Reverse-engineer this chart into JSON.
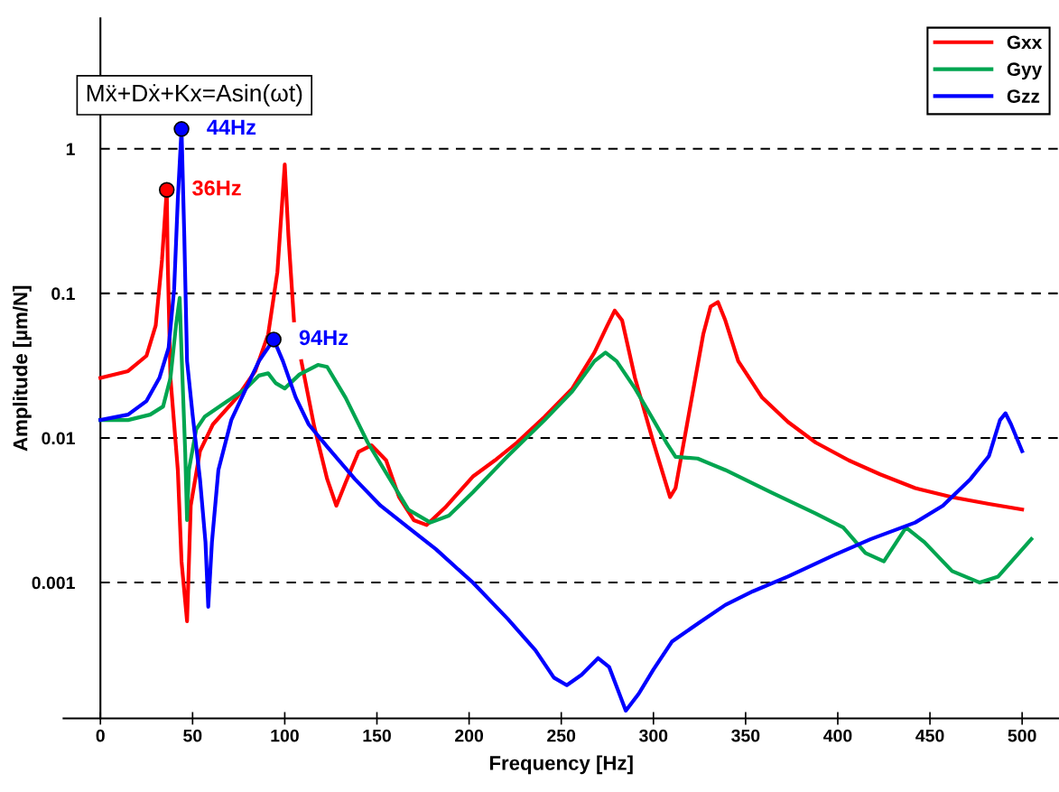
{
  "chart_data": {
    "type": "line",
    "xlabel": "Frequency [Hz]",
    "ylabel": "Amplitude [µm/N]",
    "log": "y",
    "grid": "y",
    "legend": "top right",
    "line_style": "solid",
    "marker": "none",
    "xlim": [
      -20,
      520
    ],
    "xticks": [
      0,
      50,
      100,
      150,
      200,
      250,
      300,
      350,
      400,
      450,
      500
    ],
    "ylim": [
      0.000115,
      8
    ],
    "yticks": [
      0.001,
      0.01,
      0.1,
      1
    ],
    "annotations": [
      "Mẍ+Dẋ+Kx=Asin(ωt)",
      {
        "text": "36Hz",
        "x": 36,
        "y": 0.52
      },
      {
        "text": "44Hz",
        "x": 44,
        "y": 1.37
      },
      {
        "text": "94Hz",
        "x": 94,
        "y": 0.048
      }
    ],
    "series": [
      {
        "name": "Gxx",
        "color": "#ff0000",
        "x": [
          0,
          15,
          25,
          30,
          33.4,
          36,
          36.5,
          38,
          42,
          44,
          47,
          49,
          54,
          61,
          74,
          84,
          91,
          96,
          100,
          102,
          105,
          107,
          109,
          116,
          123,
          128,
          133,
          140,
          147,
          155,
          162,
          170,
          177,
          187,
          202,
          214,
          226,
          241,
          256,
          268,
          275,
          279,
          283,
          290,
          300,
          309,
          312,
          320,
          327,
          331,
          335,
          339,
          346,
          359,
          373,
          388,
          406,
          423,
          442,
          462,
          482,
          500
        ],
        "values": [
          0.026,
          0.029,
          0.037,
          0.06,
          0.17,
          0.52,
          0.17,
          0.026,
          0.006,
          0.0014,
          0.00054,
          0.0034,
          0.0081,
          0.0124,
          0.019,
          0.029,
          0.052,
          0.14,
          0.78,
          0.25,
          0.065,
          null,
          0.034,
          0.012,
          0.0052,
          0.0034,
          0.0049,
          0.008,
          0.0089,
          0.007,
          0.0039,
          0.0027,
          0.0025,
          0.0033,
          0.0054,
          0.007,
          0.0093,
          0.014,
          0.022,
          0.039,
          0.06,
          0.076,
          0.065,
          0.026,
          0.0093,
          0.0039,
          0.0045,
          0.0166,
          0.052,
          0.081,
          0.087,
          0.065,
          0.034,
          0.019,
          0.0129,
          0.0093,
          0.007,
          0.0056,
          0.0045,
          0.0039,
          0.0035,
          0.0032
        ]
      },
      {
        "name": "Gyy",
        "color": "#00a550",
        "x": [
          0,
          15,
          27,
          34,
          38,
          41,
          43,
          44,
          46,
          47,
          48,
          52,
          56.5,
          69,
          79,
          86,
          91,
          95,
          100,
          108,
          118,
          123,
          133,
          145,
          157,
          167,
          179,
          189,
          202,
          221,
          241,
          256,
          268,
          274,
          280,
          290,
          300,
          307,
          312,
          324,
          339,
          364,
          388,
          403,
          415,
          425,
          437,
          447,
          462,
          477,
          487,
          505
        ],
        "values": [
          0.0133,
          0.0133,
          0.0145,
          0.0165,
          0.026,
          0.06,
          0.093,
          0.039,
          0.008,
          0.0027,
          0.006,
          0.0115,
          0.014,
          0.018,
          0.022,
          0.027,
          0.028,
          0.024,
          0.022,
          0.0275,
          0.032,
          0.031,
          0.019,
          0.0093,
          0.0052,
          0.0032,
          0.0026,
          0.0029,
          0.0042,
          0.0075,
          0.0133,
          0.021,
          0.034,
          0.039,
          0.034,
          0.022,
          0.0133,
          0.0093,
          0.0074,
          0.0072,
          0.006,
          0.0042,
          0.003,
          0.0024,
          0.0016,
          0.0014,
          0.0024,
          0.0019,
          0.0012,
          0.001,
          0.0011,
          0.002
        ]
      },
      {
        "name": "Gzz",
        "color": "#0000ff",
        "x": [
          0,
          15,
          25,
          32,
          37,
          40,
          42,
          44,
          45.5,
          47,
          50,
          54,
          57,
          58.5,
          60.5,
          64,
          71,
          79,
          86,
          94,
          99,
          106,
          113,
          123,
          138,
          152,
          167,
          182,
          202,
          221,
          236,
          246,
          253,
          261,
          270,
          276,
          285,
          292,
          300,
          310,
          325,
          339,
          354,
          373,
          398,
          418,
          442,
          457,
          472,
          482,
          488,
          491,
          494,
          500
        ],
        "values": [
          0.0133,
          0.0145,
          0.018,
          0.026,
          0.042,
          0.107,
          0.45,
          1.37,
          0.25,
          0.034,
          0.0145,
          0.0052,
          0.0019,
          0.00068,
          0.0019,
          0.006,
          0.0133,
          0.022,
          0.034,
          0.048,
          0.034,
          0.019,
          0.0124,
          0.0087,
          0.0052,
          0.0034,
          0.0024,
          0.0017,
          0.001,
          0.00056,
          0.00034,
          0.00022,
          0.000195,
          0.00023,
          0.0003,
          0.00026,
          0.00013,
          0.00017,
          0.00025,
          0.00039,
          0.00053,
          0.0007,
          0.00087,
          0.0011,
          0.00155,
          0.002,
          0.0026,
          0.0034,
          0.0052,
          0.0075,
          0.0133,
          0.0148,
          0.0124,
          0.0081
        ]
      },
      {
        "type": "scatter",
        "marker": "circle",
        "x": [
          36,
          44,
          94
        ],
        "values": [
          0.52,
          1.37,
          0.048
        ],
        "colors": [
          "#ff0000",
          "#0000ff",
          "#0000ff"
        ]
      }
    ]
  }
}
